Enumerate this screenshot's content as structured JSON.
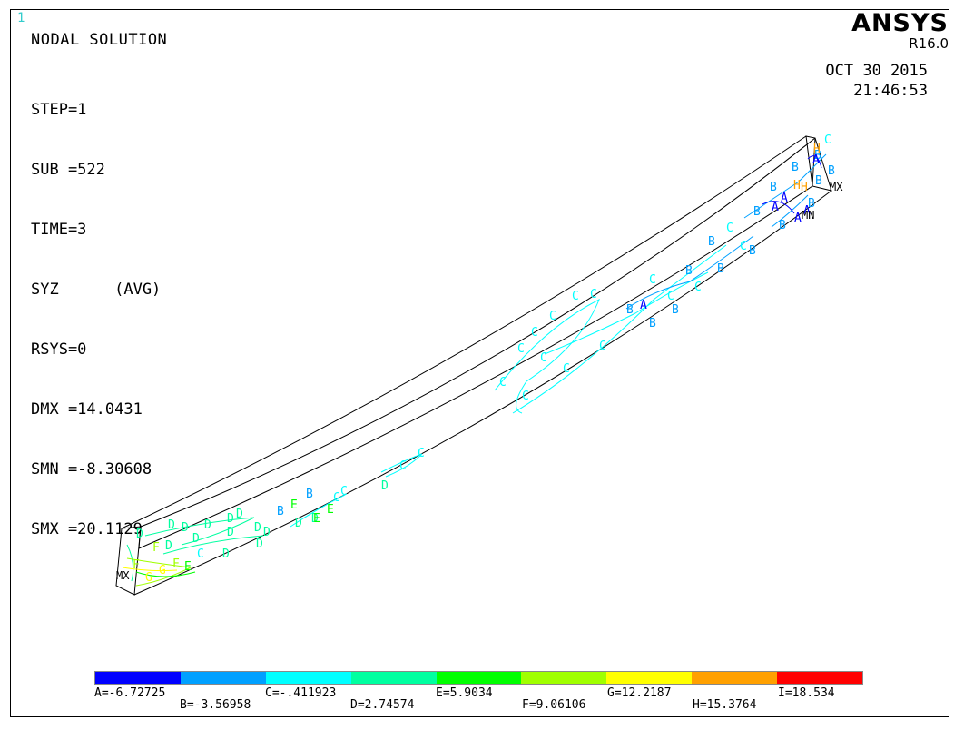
{
  "window_number": "1",
  "title": "NODAL SOLUTION",
  "params": [
    "STEP=1",
    "SUB =522",
    "TIME=3",
    "SYZ      (AVG)",
    "RSYS=0",
    "DMX =14.0431",
    "SMN =-8.30608",
    "SMX =20.1129"
  ],
  "logo": {
    "name": "ANSYS",
    "version": "R16.0"
  },
  "date": "OCT 30 2015",
  "time": "21:46:53",
  "markers": {
    "mx": "MX",
    "mn": "MN"
  },
  "legend": [
    {
      "key": "A",
      "label": "A=-6.72725",
      "color": "#0000ff"
    },
    {
      "key": "B",
      "label": "B=-3.56958",
      "color": "#00a0ff"
    },
    {
      "key": "C",
      "label": "C=-.411923",
      "color": "#00ffff"
    },
    {
      "key": "D",
      "label": "D=2.74574",
      "color": "#00ffa0"
    },
    {
      "key": "E",
      "label": "E=5.9034",
      "color": "#00ff00"
    },
    {
      "key": "F",
      "label": "F=9.06106",
      "color": "#a0ff00"
    },
    {
      "key": "G",
      "label": "G=12.2187",
      "color": "#ffff00"
    },
    {
      "key": "H",
      "label": "H=15.3764",
      "color": "#ffa000"
    },
    {
      "key": "I",
      "label": "I=18.534",
      "color": "#ff0000"
    }
  ]
}
